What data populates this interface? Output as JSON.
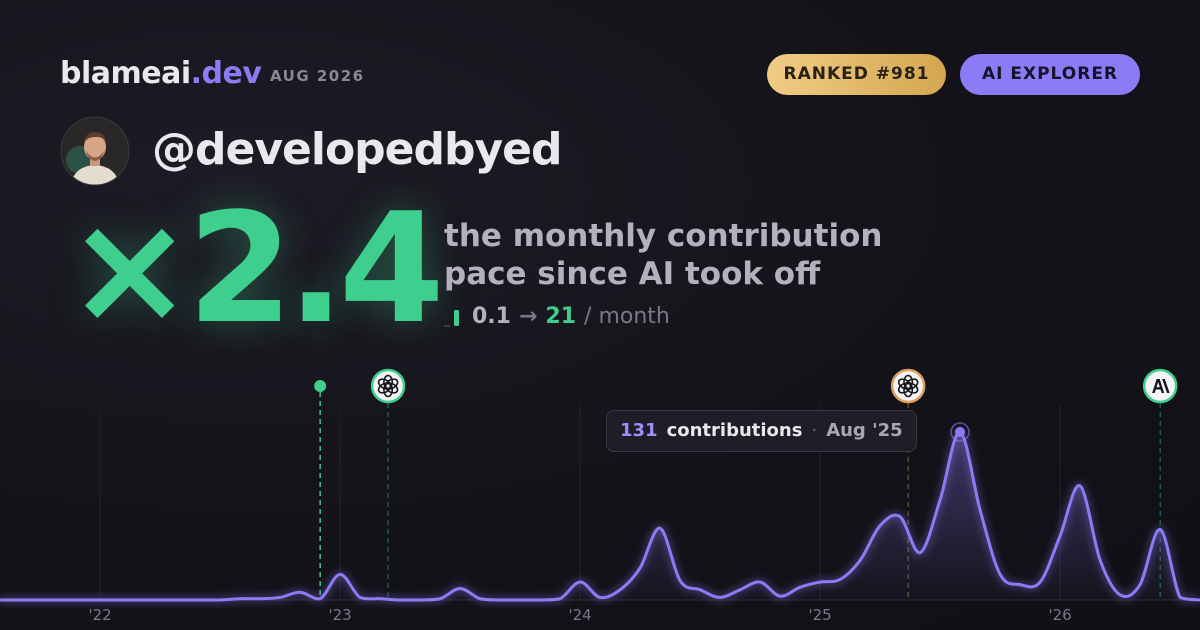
{
  "header": {
    "brand": "blameai",
    "brand_tld": ".dev",
    "date": "AUG 2026",
    "badges": [
      "RANKED #981",
      "AI EXPLORER"
    ]
  },
  "user": {
    "handle": "@developedbyed"
  },
  "headline": {
    "multiplier": "×2.4",
    "lines": [
      "the monthly contribution",
      "pace since AI took off"
    ]
  },
  "pace": {
    "before": 0.1,
    "arrow": "→",
    "after": 21,
    "unit": "/ month"
  },
  "chart_data": {
    "type": "area",
    "x": [
      2021.583,
      2021.667,
      2021.75,
      2021.833,
      2021.917,
      2022.0,
      2022.083,
      2022.167,
      2022.25,
      2022.333,
      2022.417,
      2022.5,
      2022.583,
      2022.667,
      2022.75,
      2022.833,
      2022.917,
      2023.0,
      2023.083,
      2023.167,
      2023.25,
      2023.333,
      2023.417,
      2023.5,
      2023.583,
      2023.667,
      2023.75,
      2023.833,
      2023.917,
      2024.0,
      2024.083,
      2024.167,
      2024.25,
      2024.333,
      2024.417,
      2024.5,
      2024.583,
      2024.667,
      2024.75,
      2024.833,
      2024.917,
      2025.0,
      2025.083,
      2025.167,
      2025.25,
      2025.333,
      2025.417,
      2025.5,
      2025.583,
      2025.667,
      2025.75,
      2025.833,
      2025.917,
      2026.0,
      2026.083,
      2026.167,
      2026.25,
      2026.333,
      2026.417,
      2026.5,
      2026.583
    ],
    "series": [
      {
        "name": "contributions",
        "color": "#8b7cf6",
        "values": [
          0,
          0,
          0,
          0,
          0,
          0,
          0,
          0,
          0,
          0,
          0,
          0,
          1,
          1,
          2,
          6,
          1,
          20,
          2,
          1,
          0,
          0,
          1,
          9,
          1,
          0,
          0,
          0,
          1,
          14,
          2,
          8,
          25,
          56,
          15,
          8,
          2,
          8,
          14,
          3,
          10,
          14,
          16,
          31,
          58,
          65,
          37,
          78,
          131,
          70,
          20,
          12,
          14,
          50,
          89,
          31,
          4,
          12,
          55,
          2,
          0
        ]
      }
    ],
    "xlim": [
      2021.583,
      2026.583
    ],
    "ylim": [
      0,
      156
    ],
    "xticks": [
      {
        "value": 2022,
        "label": "'22"
      },
      {
        "value": 2023,
        "label": "'23"
      },
      {
        "value": 2024,
        "label": "'24"
      },
      {
        "value": 2025,
        "label": "'25"
      },
      {
        "value": 2026,
        "label": "'26"
      }
    ],
    "grid": true,
    "markers": [
      {
        "x": 2022.917,
        "color": "#3ecf8e",
        "style": "dot"
      },
      {
        "x": 2023.2,
        "color": "#3ecf8e",
        "style": "openai"
      },
      {
        "x": 2025.367,
        "color": "#e0a060",
        "style": "openai"
      },
      {
        "x": 2026.417,
        "color": "#3ecf8e",
        "style": "anthropic"
      }
    ],
    "tooltip": {
      "index": 48,
      "label": "contributions",
      "date": "Aug '25"
    }
  }
}
